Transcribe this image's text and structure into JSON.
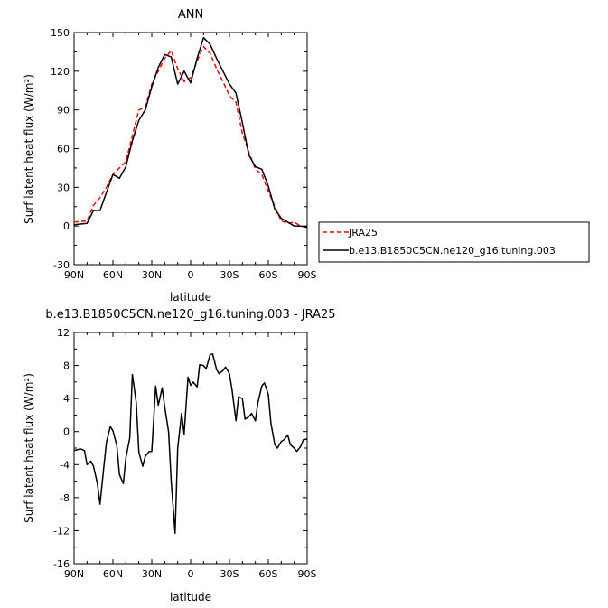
{
  "chart_data": [
    {
      "type": "line",
      "title": "ANN",
      "xlabel": "latitude",
      "ylabel": "Surf latent heat flux (W/m²)",
      "x_ticks": [
        90,
        60,
        30,
        0,
        -30,
        -60,
        -90
      ],
      "x_tick_labels": [
        "90N",
        "60N",
        "30N",
        "0",
        "30S",
        "60S",
        "90S"
      ],
      "y_ticks": [
        -30,
        0,
        30,
        60,
        90,
        120,
        150
      ],
      "xlim": [
        90,
        -90
      ],
      "ylim": [
        -30,
        150
      ],
      "legend_position": "right",
      "series": [
        {
          "name": "JRA25",
          "color": "#ff0000",
          "style": "dashed",
          "x": [
            90,
            80,
            75,
            70,
            65,
            60,
            55,
            50,
            45,
            40,
            35,
            30,
            25,
            20,
            15,
            10,
            5,
            0,
            -5,
            -10,
            -15,
            -20,
            -25,
            -30,
            -35,
            -40,
            -45,
            -50,
            -55,
            -60,
            -65,
            -70,
            -75,
            -80,
            -85,
            -90
          ],
          "values": [
            3,
            4,
            16,
            22,
            30,
            40,
            45,
            50,
            70,
            90,
            92,
            110,
            120,
            130,
            136,
            122,
            112,
            115,
            128,
            139,
            134,
            122,
            112,
            101,
            96,
            72,
            57,
            44,
            40,
            27,
            15,
            4,
            2,
            3,
            0,
            -1
          ]
        },
        {
          "name": "b.e13.B1850C5CN.ne120_g16.tuning.003",
          "color": "#000000",
          "style": "solid",
          "x": [
            90,
            80,
            75,
            70,
            65,
            60,
            55,
            50,
            45,
            40,
            35,
            30,
            25,
            20,
            15,
            10,
            5,
            0,
            -5,
            -10,
            -15,
            -20,
            -25,
            -30,
            -35,
            -40,
            -45,
            -50,
            -55,
            -60,
            -65,
            -70,
            -75,
            -80,
            -85,
            -90
          ],
          "values": [
            1,
            2,
            12,
            12,
            26,
            40,
            37,
            46,
            66,
            82,
            90,
            108,
            123,
            133,
            131,
            110,
            120,
            111,
            130,
            146,
            141,
            130,
            120,
            110,
            103,
            80,
            55,
            46,
            44,
            31,
            13,
            6,
            3,
            0,
            0,
            -1
          ]
        }
      ]
    },
    {
      "type": "line",
      "title": "b.e13.B1850C5CN.ne120_g16.tuning.003 - JRA25",
      "xlabel": "latitude",
      "ylabel": "Surf latent heat flux (W/m²)",
      "x_ticks": [
        90,
        60,
        30,
        0,
        -30,
        -60,
        -90
      ],
      "x_tick_labels": [
        "90N",
        "60N",
        "30N",
        "0",
        "30S",
        "60S",
        "90S"
      ],
      "y_ticks": [
        -16,
        -12,
        -8,
        -4,
        0,
        4,
        8,
        12
      ],
      "xlim": [
        90,
        -90
      ],
      "ylim": [
        -16,
        12
      ],
      "series": [
        {
          "color": "#000000",
          "style": "solid",
          "x": [
            90,
            85,
            82,
            80,
            77,
            75,
            72,
            70,
            67,
            65,
            62,
            60,
            57,
            55,
            52,
            50,
            47,
            45,
            42,
            40,
            37,
            35,
            32,
            30,
            27,
            25,
            22,
            20,
            17,
            15,
            12,
            10,
            7,
            5,
            2,
            0,
            -2,
            -5,
            -7,
            -10,
            -12,
            -15,
            -17,
            -20,
            -22,
            -25,
            -27,
            -30,
            -32,
            -35,
            -37,
            -40,
            -42,
            -45,
            -47,
            -50,
            -52,
            -55,
            -57,
            -60,
            -62,
            -65,
            -67,
            -70,
            -72,
            -75,
            -77,
            -80,
            -82,
            -85,
            -87,
            -90
          ],
          "values": [
            -2.3,
            -2.1,
            -2.3,
            -4.0,
            -3.6,
            -4.2,
            -6.3,
            -8.8,
            -4.2,
            -1.3,
            0.6,
            0.1,
            -1.7,
            -5.2,
            -6.3,
            -3.2,
            -0.8,
            6.9,
            3.5,
            -2.5,
            -4.2,
            -3.0,
            -2.4,
            -2.4,
            5.5,
            3.2,
            5.3,
            3.0,
            0.0,
            -6.0,
            -12.3,
            -2.0,
            2.2,
            -0.3,
            6.6,
            5.6,
            6.0,
            5.4,
            8.1,
            8.0,
            7.6,
            9.3,
            9.4,
            7.5,
            7.0,
            7.4,
            7.8,
            7.0,
            5.0,
            1.3,
            4.2,
            4.0,
            1.5,
            1.8,
            2.2,
            1.3,
            3.5,
            5.5,
            5.9,
            4.5,
            1.0,
            -1.6,
            -2.0,
            -1.2,
            -1.0,
            -0.4,
            -1.6,
            -2.0,
            -2.4,
            -1.8,
            -1.0,
            -0.9
          ]
        }
      ]
    }
  ]
}
